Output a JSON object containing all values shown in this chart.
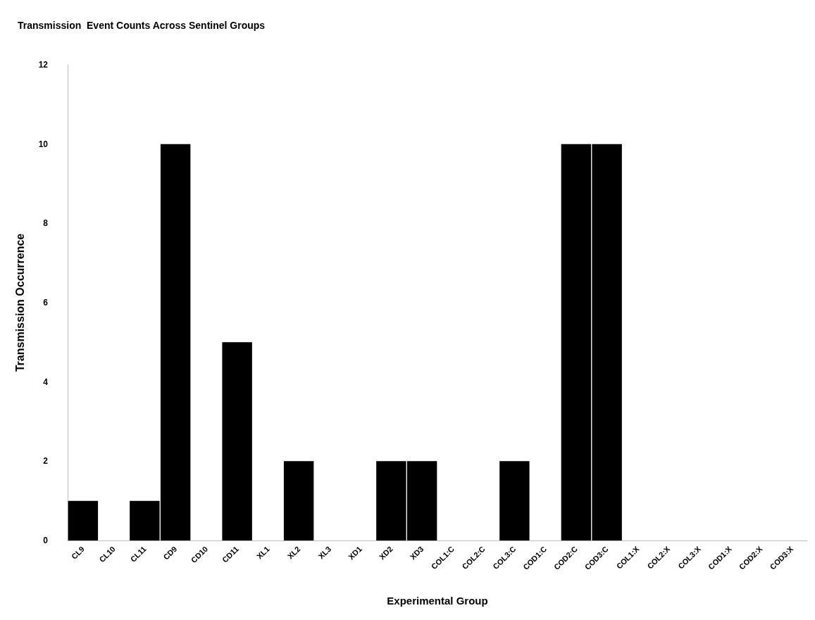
{
  "chart_data": {
    "type": "bar",
    "title": "Transmission  Event Counts Across Sentinel Groups",
    "xlabel": "Experimental Group",
    "ylabel": "Transmission Occurrence",
    "categories": [
      "CL9",
      "CL10",
      "CL11",
      "CD9",
      "CD10",
      "CD11",
      "XL1",
      "XL2",
      "XL3",
      "XD1",
      "XD2",
      "XD3",
      "COL1:C",
      "COL2:C",
      "COL3:C",
      "COD1:C",
      "COD2:C",
      "COD3:C",
      "COL1:X",
      "COL2:X",
      "COL3:X",
      "COD1:X",
      "COD2:X",
      "COD3:X"
    ],
    "values": [
      1,
      0,
      1,
      10,
      0,
      5,
      0,
      2,
      0,
      0,
      2,
      2,
      0,
      0,
      2,
      0,
      10,
      10,
      0,
      0,
      0,
      0,
      0,
      0
    ],
    "color": "#000000",
    "ylim": [
      0,
      12
    ],
    "yticks": [
      0,
      2,
      4,
      6,
      8,
      10,
      12
    ],
    "grid": false
  }
}
